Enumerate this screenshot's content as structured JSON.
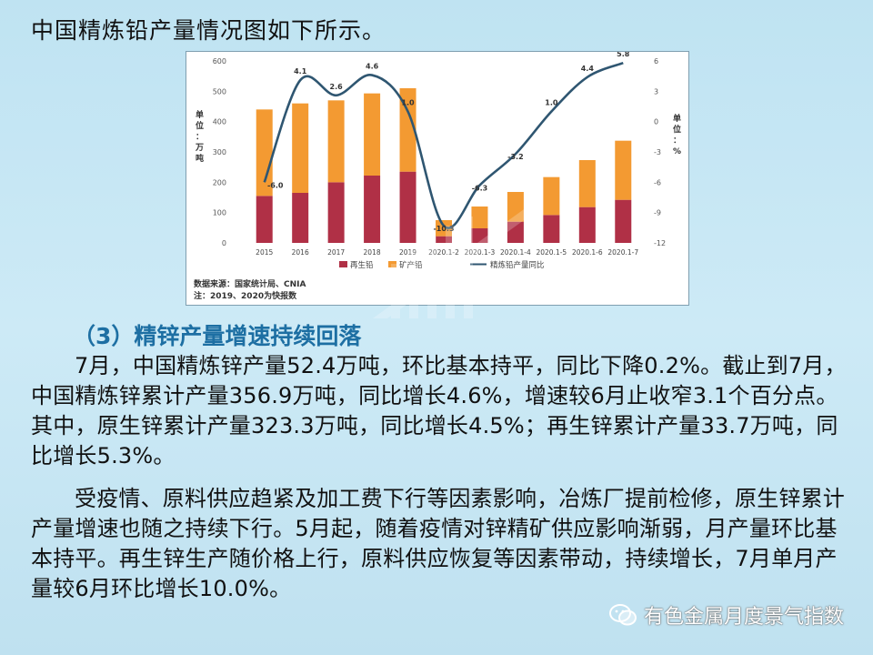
{
  "document": {
    "intro": "中国精炼铅产量情况图如下所示。",
    "section_heading": "（3）精锌产量增速持续回落",
    "paragraph_1": "7月，中国精炼锌产量52.4万吨，环比基本持平，同比下降0.2%。截止到7月，中国精炼锌累计产量356.9万吨，同比增长4.6%，增速较6月止收窄3.1个百分点。其中，原生锌累计产量323.3万吨，同比增长4.5%；再生锌累计产量33.7万吨，同比增长5.3%。",
    "paragraph_2": "受疫情、原料供应趋紧及加工费下行等因素影响，冶炼厂提前检修，原生锌累计产量增速也随之持续下行。5月起，随着疫情对锌精矿供应影响渐弱，月产量环比基本持平。再生锌生产随价格上行，原料供应恢复等因素带动，持续增长，7月单月产量较6月环比增长10.0%。",
    "watermark": "有色金属月度景气指数"
  },
  "chart_data": {
    "type": "bar",
    "stacked": true,
    "categories": [
      "2015",
      "2016",
      "2017",
      "2018",
      "2019",
      "2020.1-2",
      "2020.1-3",
      "2020.1-4",
      "2020.1-5",
      "2020.1-6",
      "2020.1-7"
    ],
    "series": [
      {
        "name": "再生铅",
        "type": "bar",
        "color": "#b03046",
        "values": [
          155,
          165,
          200,
          222,
          235,
          22,
          48,
          70,
          92,
          118,
          142
        ]
      },
      {
        "name": "矿产铅",
        "type": "bar",
        "color": "#f39a32",
        "values": [
          285,
          295,
          270,
          271,
          275,
          53,
          72,
          98,
          125,
          155,
          195
        ]
      },
      {
        "name": "精炼铅产量同比",
        "type": "line",
        "color": "#2f5671",
        "axis": "right",
        "values": [
          -6.0,
          4.1,
          2.6,
          4.6,
          1.0,
          -10.3,
          -6.3,
          -3.2,
          1.0,
          4.4,
          5.8
        ]
      }
    ],
    "line_labels": [
      "-6.0",
      "4.1",
      "2.6",
      "4.6",
      "1.0",
      "-10.3",
      "-6.3",
      "-3.2",
      "1.0",
      "4.4",
      "5.8"
    ],
    "left_axis": {
      "label": "单位：万吨",
      "ticks": [
        "0",
        "100",
        "200",
        "300",
        "400",
        "500",
        "600"
      ],
      "ylim": [
        0,
        600
      ]
    },
    "right_axis": {
      "label": "单位：%",
      "ticks": [
        "-12",
        "-9",
        "-6",
        "-3",
        "0",
        "3",
        "6"
      ],
      "ylim": [
        -12,
        6
      ]
    },
    "legend": [
      "再生铅",
      "矿产铅",
      "精炼铅产量同比"
    ],
    "legend_placement": "bottom",
    "source_note": "数据来源：国家统计局、CNIA",
    "footnote": "注：2019、2020为快报数",
    "grid": false
  }
}
